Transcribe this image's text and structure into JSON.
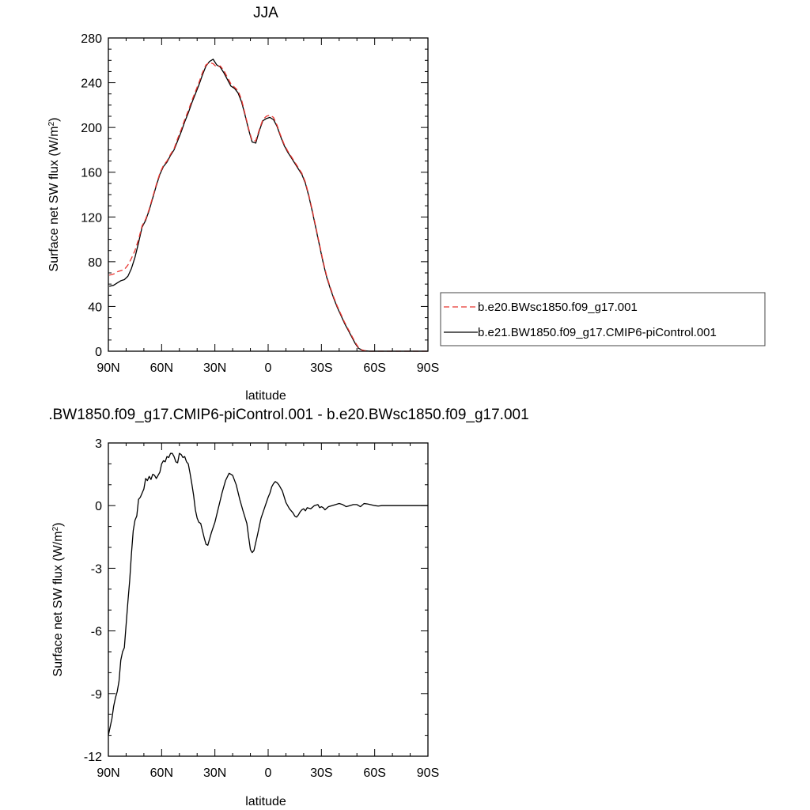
{
  "chart_data": [
    {
      "type": "line",
      "title": "JJA",
      "xlabel": "latitude",
      "ylabel": "Surface net SW flux (W/m",
      "ylabel_sup": "2",
      "ylabel_end": ")",
      "xlim": [
        90,
        -90
      ],
      "ylim": [
        0,
        280
      ],
      "x_tick_values": [
        90,
        60,
        30,
        0,
        -30,
        -60,
        -90
      ],
      "x_tick_labels": [
        "90N",
        "60N",
        "30N",
        "0",
        "30S",
        "60S",
        "90S"
      ],
      "y_tick_values": [
        0,
        40,
        80,
        120,
        160,
        200,
        240,
        280
      ],
      "y_tick_labels": [
        "0",
        "40",
        "80",
        "120",
        "160",
        "200",
        "240",
        "280"
      ],
      "grid": false,
      "legend": "right",
      "series": [
        {
          "name": "b.e20.BWsc1850.f09_g17.001",
          "color": "#e8342f",
          "dash": "dashed",
          "x": [
            89.5,
            87,
            85,
            83,
            81,
            79,
            77,
            75,
            73,
            71,
            69,
            67,
            65,
            63,
            61,
            59,
            57,
            55,
            53,
            51,
            49,
            47,
            45,
            43,
            41,
            39,
            37,
            35,
            33,
            31,
            29,
            27,
            25,
            23,
            21,
            19,
            17,
            15,
            13,
            11,
            9,
            7,
            5,
            3,
            1,
            -1,
            -3,
            -5,
            -7,
            -9,
            -11,
            -13,
            -15,
            -17,
            -19,
            -21,
            -23,
            -25,
            -27,
            -29,
            -31,
            -33,
            -35,
            -37,
            -39,
            -41,
            -43,
            -45,
            -47,
            -49,
            -51,
            -53,
            -55,
            -57,
            -59,
            -61,
            -63,
            -65,
            -67,
            -69,
            -71,
            -75,
            -80,
            -85,
            -90
          ],
          "y": [
            68,
            69,
            71,
            72,
            73,
            77,
            83,
            90,
            100,
            112,
            118,
            127,
            138,
            149,
            159,
            166,
            170,
            176,
            181,
            190,
            198,
            207,
            215,
            224,
            232,
            240,
            249,
            256,
            258,
            257,
            254,
            255,
            251,
            245,
            239,
            236,
            233,
            225,
            212,
            199,
            188,
            188,
            198,
            207,
            210,
            211,
            209,
            202,
            193,
            185,
            179,
            174,
            169,
            164,
            159,
            151,
            139,
            125,
            110,
            95,
            80,
            67,
            57,
            48,
            40,
            33,
            26,
            20,
            14,
            8,
            3,
            1,
            0.3,
            0,
            0,
            0,
            0,
            0,
            0,
            0,
            0,
            0,
            0,
            0,
            0
          ]
        },
        {
          "name": "b.e21.BW1850.f09_g17.CMIP6-piControl.001",
          "color": "#000000",
          "dash": "solid",
          "x": [
            89.5,
            87,
            85,
            83,
            81,
            79,
            77,
            75,
            73,
            71,
            69,
            67,
            65,
            63,
            61,
            59,
            57,
            55,
            53,
            51,
            49,
            47,
            45,
            43,
            41,
            39,
            37,
            35,
            33,
            31,
            29,
            27,
            25,
            23,
            21,
            19,
            17,
            15,
            13,
            11,
            9,
            7,
            5,
            3,
            1,
            -1,
            -3,
            -5,
            -7,
            -9,
            -11,
            -13,
            -15,
            -17,
            -19,
            -21,
            -23,
            -25,
            -27,
            -29,
            -31,
            -33,
            -35,
            -37,
            -39,
            -41,
            -43,
            -45,
            -47,
            -49,
            -51,
            -53,
            -55,
            -57,
            -59,
            -61,
            -63,
            -65,
            -67,
            -69,
            -71,
            -75,
            -80,
            -85,
            -90
          ],
          "y": [
            58,
            59,
            61,
            63,
            64,
            67,
            74,
            84,
            97,
            111,
            117,
            126,
            137,
            148,
            158,
            165,
            169,
            175,
            180,
            188,
            196,
            205,
            213,
            222,
            230,
            238,
            247,
            255,
            259,
            261,
            256,
            254,
            249,
            243,
            237,
            235,
            231,
            223,
            211,
            198,
            187,
            186,
            197,
            206,
            208,
            209,
            207,
            201,
            192,
            184,
            178,
            173,
            168,
            163,
            158,
            150,
            138,
            124,
            109,
            94,
            79,
            66,
            56,
            47,
            39,
            32,
            25,
            19,
            13,
            7,
            2.5,
            1,
            0.3,
            0,
            0,
            0,
            0,
            0,
            0,
            0,
            0,
            0,
            0,
            0,
            0
          ]
        }
      ]
    },
    {
      "type": "line",
      "title": ".BW1850.f09_g17.CMIP6-piControl.001 - b.e20.BWsc1850.f09_g17.001",
      "xlabel": "latitude",
      "ylabel": "Surface net SW flux (W/m",
      "ylabel_sup": "2",
      "ylabel_end": ")",
      "xlim": [
        90,
        -90
      ],
      "ylim": [
        -12,
        3
      ],
      "x_tick_values": [
        90,
        60,
        30,
        0,
        -30,
        -60,
        -90
      ],
      "x_tick_labels": [
        "90N",
        "60N",
        "30N",
        "0",
        "30S",
        "60S",
        "90S"
      ],
      "y_tick_values": [
        -12,
        -9,
        -6,
        -3,
        0,
        3
      ],
      "y_tick_labels": [
        "-12",
        "-9",
        "-6",
        "-3",
        "0",
        "3"
      ],
      "grid": false,
      "series": [
        {
          "color": "#000000",
          "dash": "solid",
          "x": [
            90,
            89,
            88,
            87,
            86,
            85,
            84,
            83,
            82,
            81,
            80,
            79,
            78,
            77,
            76,
            75,
            74,
            73,
            72,
            71,
            70,
            69,
            68,
            67,
            66,
            65,
            64,
            63,
            62,
            61,
            60,
            59,
            58,
            57,
            56,
            55,
            54,
            53,
            52,
            51,
            50,
            49,
            48,
            47,
            46,
            45,
            44,
            43,
            42,
            41,
            40,
            39,
            38,
            37,
            36,
            35,
            34,
            32,
            30,
            28,
            26,
            24,
            22,
            21,
            20,
            18,
            16,
            14,
            12,
            11,
            10,
            9,
            8,
            6,
            4,
            2,
            0,
            -1,
            -2,
            -3,
            -4,
            -5,
            -6,
            -8,
            -10,
            -12,
            -14,
            -15,
            -16,
            -17,
            -18,
            -19,
            -20,
            -21,
            -22,
            -24,
            -26,
            -28,
            -29,
            -30,
            -31,
            -32,
            -34,
            -36,
            -38,
            -40,
            -42,
            -44,
            -46,
            -48,
            -50,
            -52,
            -54,
            -56,
            -58,
            -60,
            -62,
            -64,
            -66,
            -68,
            -70,
            -75,
            -80,
            -85,
            -90
          ],
          "y": [
            -11,
            -10.6,
            -10.2,
            -9.6,
            -9.2,
            -8.9,
            -8.4,
            -7.4,
            -7,
            -6.8,
            -5.7,
            -4.6,
            -3.6,
            -2.3,
            -1.2,
            -0.7,
            -0.5,
            0.3,
            0.4,
            0.6,
            0.8,
            1.3,
            1.2,
            1.4,
            1.25,
            1.5,
            1.45,
            1.3,
            1.45,
            1.6,
            2,
            2.15,
            2.1,
            2.35,
            2.3,
            2.5,
            2.5,
            2.35,
            2.1,
            2.05,
            2.5,
            2.45,
            2.3,
            2.35,
            2.1,
            2.0,
            1.55,
            1.05,
            0.5,
            -0.2,
            -0.6,
            -0.8,
            -0.85,
            -1.2,
            -1.55,
            -1.85,
            -1.9,
            -1.3,
            -0.8,
            -0.1,
            0.6,
            1.2,
            1.55,
            1.5,
            1.45,
            1.0,
            0.3,
            -0.3,
            -0.85,
            -1.5,
            -2.1,
            -2.25,
            -2.15,
            -1.4,
            -0.6,
            -0.1,
            0.4,
            0.6,
            0.9,
            1.05,
            1.15,
            1.1,
            1.0,
            0.7,
            0.15,
            -0.15,
            -0.35,
            -0.5,
            -0.55,
            -0.45,
            -0.3,
            -0.2,
            -0.15,
            -0.25,
            -0.1,
            -0.15,
            0,
            0.05,
            -0.1,
            -0.05,
            -0.1,
            -0.2,
            -0.05,
            0,
            0.05,
            0.1,
            0.05,
            -0.05,
            0,
            0.05,
            0.05,
            -0.05,
            0.1,
            0.08,
            0.04,
            0,
            -0.02,
            0,
            0,
            0,
            0,
            0,
            0,
            0,
            0
          ]
        }
      ]
    }
  ]
}
